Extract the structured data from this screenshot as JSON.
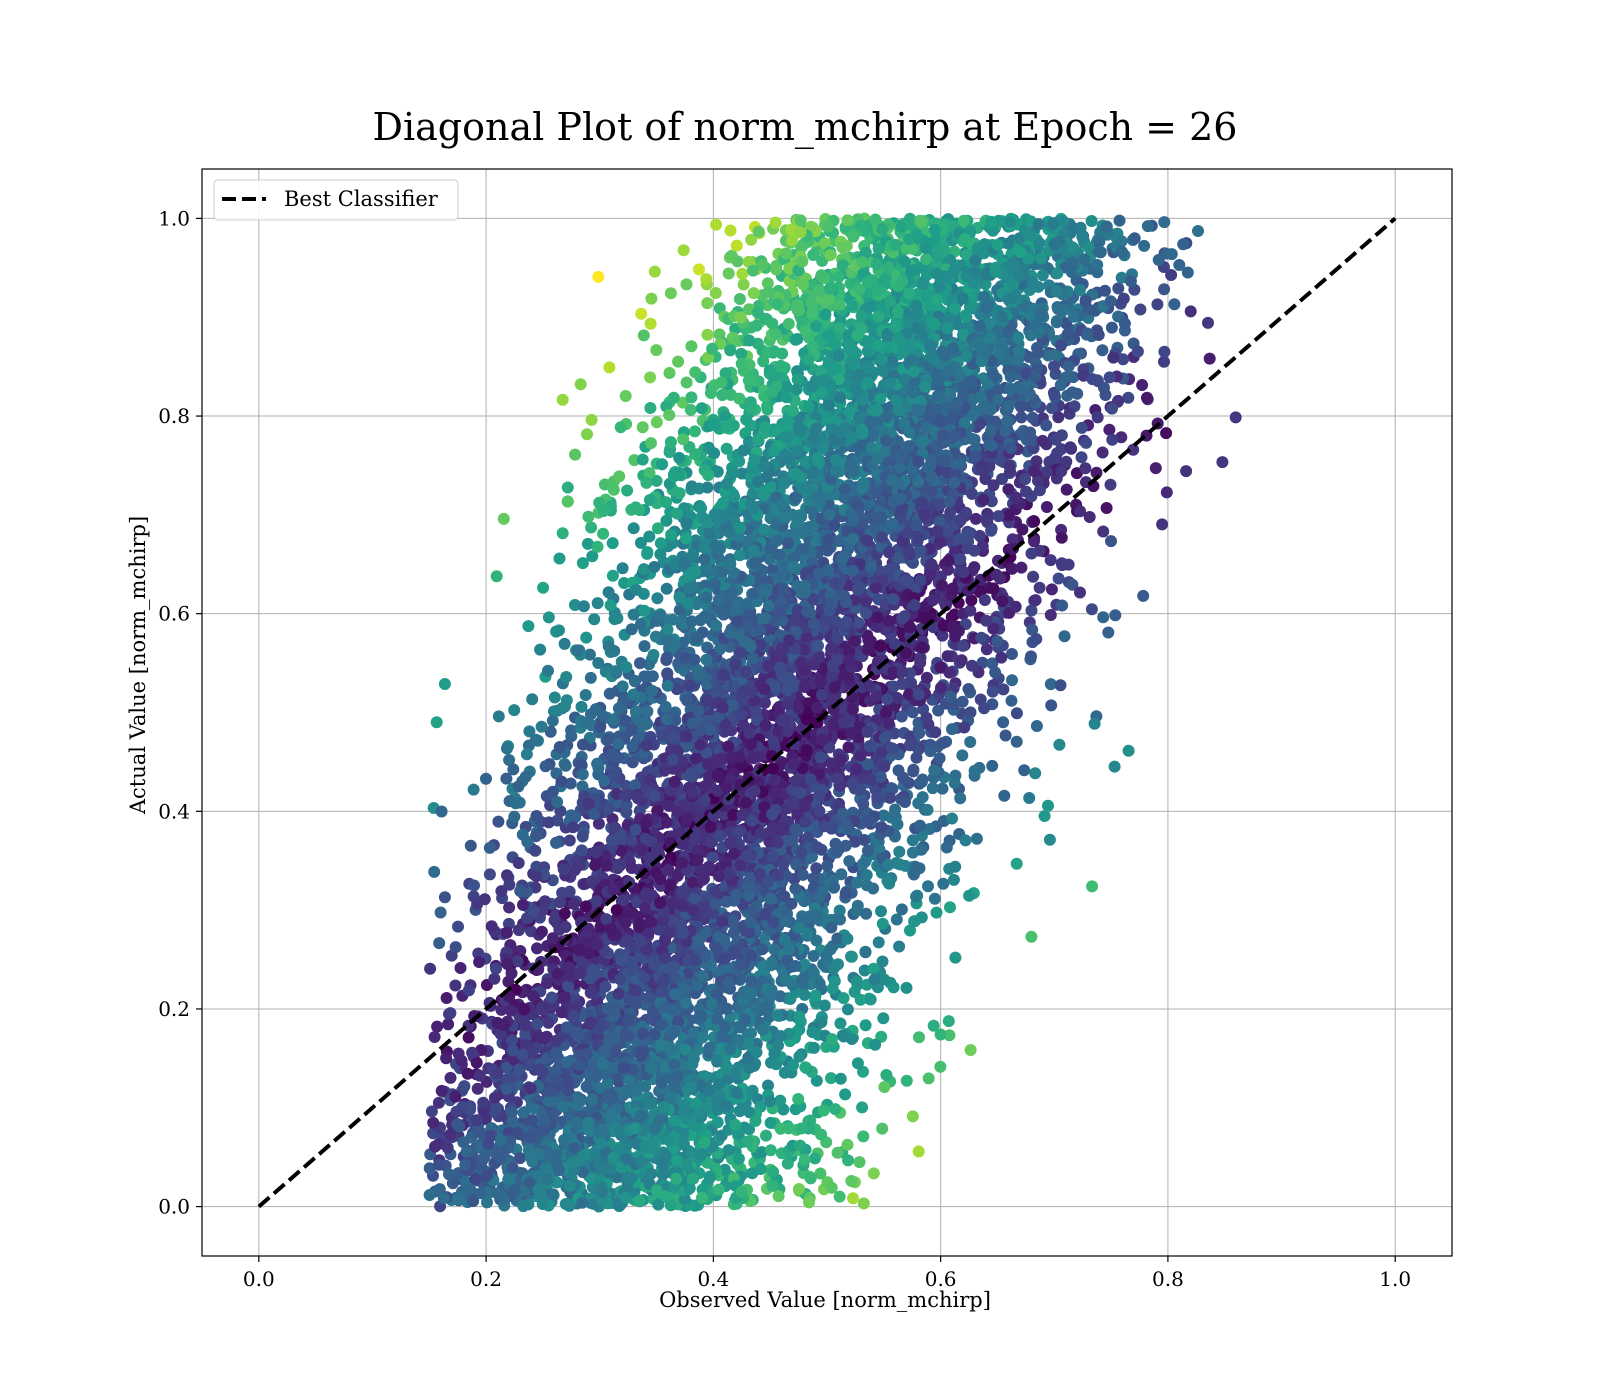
{
  "chart_data": {
    "type": "scatter",
    "title": "Diagonal Plot of norm_mchirp at Epoch = 26",
    "xlabel": "Observed Value [norm_mchirp]",
    "ylabel": "Actual Value [norm_mchirp]",
    "xlim": [
      -0.05,
      1.05
    ],
    "ylim": [
      -0.05,
      1.05
    ],
    "xticks": [
      0.0,
      0.2,
      0.4,
      0.6,
      0.8,
      1.0
    ],
    "yticks": [
      0.0,
      0.2,
      0.4,
      0.6,
      0.8,
      1.0
    ],
    "xtick_labels": [
      "0.0",
      "0.2",
      "0.4",
      "0.6",
      "0.8",
      "1.0"
    ],
    "ytick_labels": [
      "0.0",
      "0.2",
      "0.4",
      "0.6",
      "0.8",
      "1.0"
    ],
    "grid": true,
    "legend": {
      "position": "top-left",
      "entries": [
        "Best Classifier"
      ]
    },
    "colormap": "viridis",
    "reference_line": {
      "name": "Best Classifier",
      "style": "dashed",
      "color": "#000000",
      "x": [
        0.0,
        1.0
      ],
      "y": [
        0.0,
        1.0
      ]
    },
    "point_cloud": {
      "description_of_distribution": "dense band; observed ≈ 0.45 + 0.35*(actual-0.5) with spread",
      "x_range": [
        0.15,
        0.86
      ],
      "y_range": [
        0.0,
        1.0
      ]
    }
  }
}
